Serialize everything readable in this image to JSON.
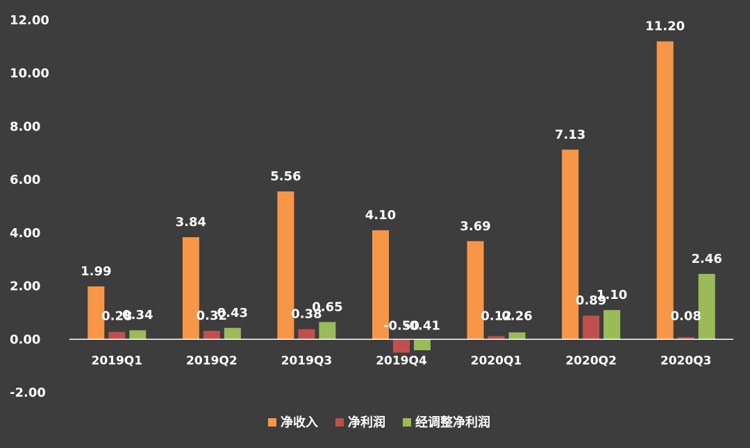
{
  "chart_data": {
    "type": "bar",
    "title": "",
    "xlabel": "",
    "ylabel": "",
    "categories": [
      "2019Q1",
      "2019Q2",
      "2019Q3",
      "2019Q4",
      "2020Q1",
      "2020Q2",
      "2020Q3"
    ],
    "series": [
      {
        "name": "净收入",
        "color": "#f79646",
        "values": [
          1.99,
          3.84,
          5.56,
          4.1,
          3.69,
          7.13,
          11.2
        ],
        "labels": [
          "1.99",
          "3.84",
          "5.56",
          "4.10",
          "3.69",
          "7.13",
          "11.20"
        ]
      },
      {
        "name": "净利润",
        "color": "#c0504d",
        "values": [
          0.28,
          0.32,
          0.38,
          -0.5,
          0.12,
          0.89,
          0.08
        ],
        "labels": [
          "0.28",
          "0.32",
          "0.38",
          "-0.50",
          "0.12",
          "0.89",
          "0.08"
        ]
      },
      {
        "name": "经调整净利润",
        "color": "#9bbb59",
        "values": [
          0.34,
          0.43,
          0.65,
          -0.41,
          0.26,
          1.1,
          2.46
        ],
        "labels": [
          "0.34",
          "0.43",
          "0.65",
          "-0.41",
          "0.26",
          "1.10",
          "2.46"
        ]
      }
    ],
    "ylim": [
      -2,
      12
    ],
    "yticks": [
      -2,
      0,
      2,
      4,
      6,
      8,
      10,
      12
    ],
    "ytick_labels": [
      "-2.00",
      "0.00",
      "2.00",
      "4.00",
      "6.00",
      "8.00",
      "10.00",
      "12.00"
    ],
    "grid": false,
    "legend_position": "bottom",
    "background": "#3d3d3d",
    "axis_color": "#ffffff"
  }
}
